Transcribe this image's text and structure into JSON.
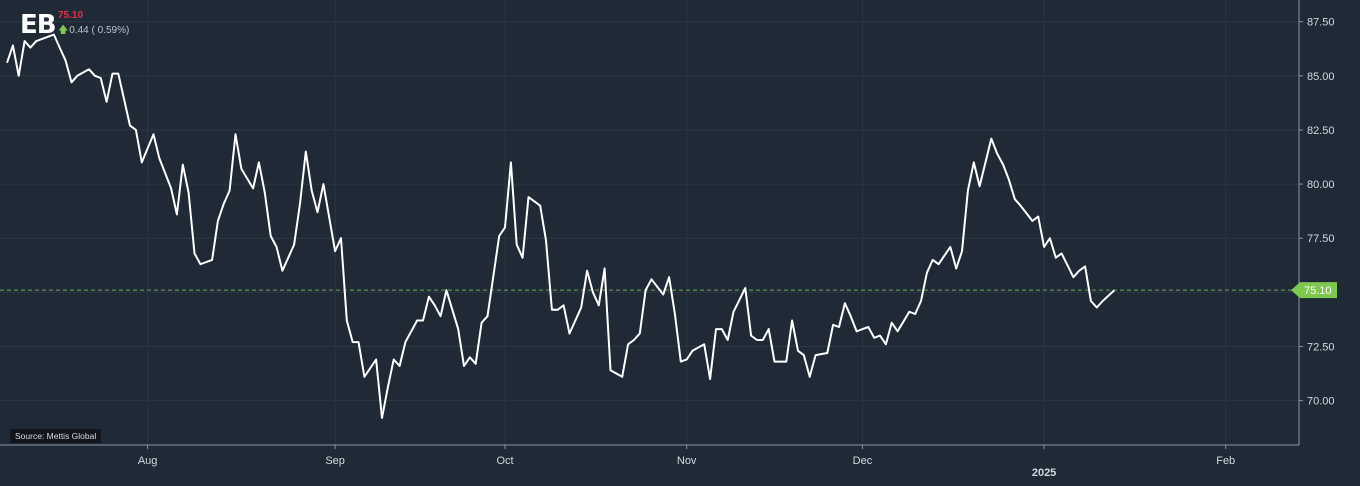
{
  "header": {
    "ticker": "EB",
    "last_price": "75.10",
    "change": "0.44 ( 0.59%)"
  },
  "source_note": "Source: Mettis Global",
  "colors": {
    "background": "#1f2a36",
    "grid": "#2b3744",
    "line": "#ffffff",
    "price_label": "#7ec850",
    "last_price_text": "#e0334a",
    "arrow_up": "#7ec850"
  },
  "chart_data": {
    "type": "line",
    "title": "",
    "xlabel": "",
    "ylabel": "",
    "ylim": [
      67.95,
      88.5
    ],
    "y_ticks": [
      "87.50",
      "85.00",
      "82.50",
      "80.00",
      "77.50",
      "75.00",
      "72.50",
      "70.00"
    ],
    "y_tick_values": [
      87.5,
      85.0,
      82.5,
      80.0,
      77.5,
      75.0,
      72.5,
      70.0
    ],
    "x_ticks": [
      {
        "label": "Aug",
        "date": "2024-08-01"
      },
      {
        "label": "Sep",
        "date": "2024-09-02"
      },
      {
        "label": "Oct",
        "date": "2024-10-01"
      },
      {
        "label": "Nov",
        "date": "2024-11-01"
      },
      {
        "label": "Dec",
        "date": "2024-12-01"
      },
      {
        "label": "2025",
        "date": "2025-01-01"
      },
      {
        "label": "Feb",
        "date": "2025-02-01"
      }
    ],
    "current_value": 75.1,
    "current_value_label": "75.10",
    "grid": true,
    "series": [
      {
        "points": [
          [
            "2024-07-08",
            85.6
          ],
          [
            "2024-07-09",
            86.4
          ],
          [
            "2024-07-10",
            85.0
          ],
          [
            "2024-07-11",
            86.6
          ],
          [
            "2024-07-12",
            86.3
          ],
          [
            "2024-07-13",
            86.6
          ],
          [
            "2024-07-16",
            86.9
          ],
          [
            "2024-07-17",
            86.3
          ],
          [
            "2024-07-18",
            85.7
          ],
          [
            "2024-07-19",
            84.7
          ],
          [
            "2024-07-20",
            85.0
          ],
          [
            "2024-07-22",
            85.3
          ],
          [
            "2024-07-23",
            85.0
          ],
          [
            "2024-07-24",
            84.9
          ],
          [
            "2024-07-25",
            83.8
          ],
          [
            "2024-07-26",
            85.1
          ],
          [
            "2024-07-27",
            85.1
          ],
          [
            "2024-07-29",
            82.7
          ],
          [
            "2024-07-30",
            82.5
          ],
          [
            "2024-07-31",
            81.0
          ],
          [
            "2024-08-02",
            82.3
          ],
          [
            "2024-08-03",
            81.2
          ],
          [
            "2024-08-05",
            79.8
          ],
          [
            "2024-08-06",
            78.6
          ],
          [
            "2024-08-07",
            80.9
          ],
          [
            "2024-08-08",
            79.6
          ],
          [
            "2024-08-09",
            76.8
          ],
          [
            "2024-08-10",
            76.3
          ],
          [
            "2024-08-12",
            76.5
          ],
          [
            "2024-08-13",
            78.3
          ],
          [
            "2024-08-14",
            79.1
          ],
          [
            "2024-08-15",
            79.7
          ],
          [
            "2024-08-16",
            82.3
          ],
          [
            "2024-08-17",
            80.7
          ],
          [
            "2024-08-19",
            79.8
          ],
          [
            "2024-08-20",
            81.0
          ],
          [
            "2024-08-21",
            79.6
          ],
          [
            "2024-08-22",
            77.6
          ],
          [
            "2024-08-23",
            77.1
          ],
          [
            "2024-08-24",
            76.0
          ],
          [
            "2024-08-26",
            77.2
          ],
          [
            "2024-08-27",
            79.1
          ],
          [
            "2024-08-28",
            81.5
          ],
          [
            "2024-08-29",
            79.7
          ],
          [
            "2024-08-30",
            78.7
          ],
          [
            "2024-08-31",
            80.0
          ],
          [
            "2024-09-02",
            76.9
          ],
          [
            "2024-09-03",
            77.5
          ],
          [
            "2024-09-04",
            73.7
          ],
          [
            "2024-09-05",
            72.7
          ],
          [
            "2024-09-06",
            72.7
          ],
          [
            "2024-09-07",
            71.1
          ],
          [
            "2024-09-09",
            71.9
          ],
          [
            "2024-09-10",
            69.2
          ],
          [
            "2024-09-11",
            70.6
          ],
          [
            "2024-09-12",
            71.9
          ],
          [
            "2024-09-13",
            71.6
          ],
          [
            "2024-09-14",
            72.7
          ],
          [
            "2024-09-16",
            73.7
          ],
          [
            "2024-09-17",
            73.7
          ],
          [
            "2024-09-18",
            74.8
          ],
          [
            "2024-09-19",
            74.4
          ],
          [
            "2024-09-20",
            73.9
          ],
          [
            "2024-09-21",
            75.1
          ],
          [
            "2024-09-23",
            73.3
          ],
          [
            "2024-09-24",
            71.6
          ],
          [
            "2024-09-25",
            72.0
          ],
          [
            "2024-09-26",
            71.7
          ],
          [
            "2024-09-27",
            73.6
          ],
          [
            "2024-09-28",
            73.9
          ],
          [
            "2024-09-30",
            77.6
          ],
          [
            "2024-10-01",
            78.0
          ],
          [
            "2024-10-02",
            81.0
          ],
          [
            "2024-10-03",
            77.2
          ],
          [
            "2024-10-04",
            76.6
          ],
          [
            "2024-10-05",
            79.4
          ],
          [
            "2024-10-07",
            79.0
          ],
          [
            "2024-10-08",
            77.4
          ],
          [
            "2024-10-09",
            74.2
          ],
          [
            "2024-10-10",
            74.2
          ],
          [
            "2024-10-11",
            74.4
          ],
          [
            "2024-10-12",
            73.1
          ],
          [
            "2024-10-14",
            74.3
          ],
          [
            "2024-10-15",
            76.0
          ],
          [
            "2024-10-16",
            75.0
          ],
          [
            "2024-10-17",
            74.4
          ],
          [
            "2024-10-18",
            76.1
          ],
          [
            "2024-10-19",
            71.4
          ],
          [
            "2024-10-21",
            71.1
          ],
          [
            "2024-10-22",
            72.6
          ],
          [
            "2024-10-23",
            72.8
          ],
          [
            "2024-10-24",
            73.1
          ],
          [
            "2024-10-25",
            75.1
          ],
          [
            "2024-10-26",
            75.6
          ],
          [
            "2024-10-28",
            74.9
          ],
          [
            "2024-10-29",
            75.7
          ],
          [
            "2024-10-30",
            74.0
          ],
          [
            "2024-10-31",
            71.8
          ],
          [
            "2024-11-01",
            71.9
          ],
          [
            "2024-11-02",
            72.3
          ],
          [
            "2024-11-04",
            72.6
          ],
          [
            "2024-11-05",
            71.0
          ],
          [
            "2024-11-06",
            73.3
          ],
          [
            "2024-11-07",
            73.3
          ],
          [
            "2024-11-08",
            72.8
          ],
          [
            "2024-11-09",
            74.1
          ],
          [
            "2024-11-11",
            75.2
          ],
          [
            "2024-11-12",
            73.0
          ],
          [
            "2024-11-13",
            72.8
          ],
          [
            "2024-11-14",
            72.8
          ],
          [
            "2024-11-15",
            73.3
          ],
          [
            "2024-11-16",
            71.8
          ],
          [
            "2024-11-18",
            71.8
          ],
          [
            "2024-11-19",
            73.7
          ],
          [
            "2024-11-20",
            72.3
          ],
          [
            "2024-11-21",
            72.1
          ],
          [
            "2024-11-22",
            71.1
          ],
          [
            "2024-11-23",
            72.1
          ],
          [
            "2024-11-25",
            72.2
          ],
          [
            "2024-11-26",
            73.5
          ],
          [
            "2024-11-27",
            73.4
          ],
          [
            "2024-11-28",
            74.5
          ],
          [
            "2024-11-29",
            73.9
          ],
          [
            "2024-11-30",
            73.2
          ],
          [
            "2024-12-02",
            73.4
          ],
          [
            "2024-12-03",
            72.9
          ],
          [
            "2024-12-04",
            73.0
          ],
          [
            "2024-12-05",
            72.6
          ],
          [
            "2024-12-06",
            73.6
          ],
          [
            "2024-12-07",
            73.2
          ],
          [
            "2024-12-09",
            74.1
          ],
          [
            "2024-12-10",
            74.0
          ],
          [
            "2024-12-11",
            74.6
          ],
          [
            "2024-12-12",
            75.9
          ],
          [
            "2024-12-13",
            76.5
          ],
          [
            "2024-12-14",
            76.3
          ],
          [
            "2024-12-16",
            77.1
          ],
          [
            "2024-12-17",
            76.1
          ],
          [
            "2024-12-18",
            76.9
          ],
          [
            "2024-12-19",
            79.7
          ],
          [
            "2024-12-20",
            81.0
          ],
          [
            "2024-12-21",
            79.9
          ],
          [
            "2024-12-23",
            82.1
          ],
          [
            "2024-12-24",
            81.4
          ],
          [
            "2024-12-25",
            80.9
          ],
          [
            "2024-12-26",
            80.2
          ],
          [
            "2024-12-27",
            79.3
          ],
          [
            "2024-12-28",
            79.0
          ],
          [
            "2024-12-30",
            78.3
          ],
          [
            "2024-12-31",
            78.5
          ],
          [
            "2025-01-01",
            77.1
          ],
          [
            "2025-01-02",
            77.5
          ],
          [
            "2025-01-03",
            76.6
          ],
          [
            "2025-01-04",
            76.8
          ],
          [
            "2025-01-06",
            75.7
          ],
          [
            "2025-01-07",
            76.0
          ],
          [
            "2025-01-08",
            76.2
          ],
          [
            "2025-01-09",
            74.6
          ],
          [
            "2025-01-10",
            74.3
          ],
          [
            "2025-01-11",
            74.6
          ],
          [
            "2025-01-13",
            75.1
          ]
        ]
      }
    ]
  }
}
